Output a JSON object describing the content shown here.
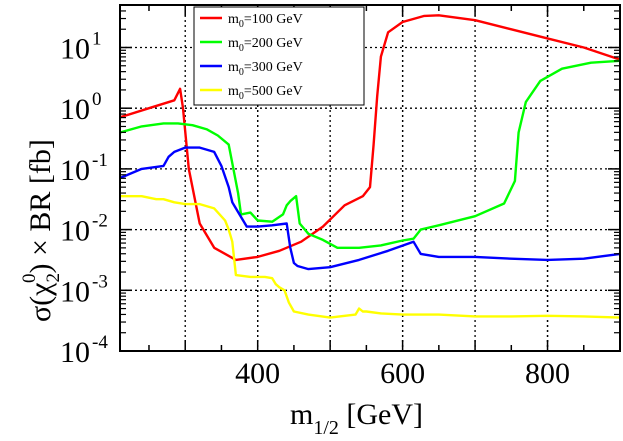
{
  "chart_data": {
    "type": "line",
    "xlabel": {
      "main": "m",
      "sub": "1/2",
      "unit": " [GeV]"
    },
    "ylabel": {
      "pre": "σ(χ",
      "sub": "2",
      "sup": "0",
      "post": ") × BR [fb]"
    },
    "xlim": [
      210,
      900
    ],
    "ylim_log10": [
      -4,
      1.7
    ],
    "y_scale": "log",
    "grid": true,
    "legend_placement": "top-center",
    "x_ticks": [
      "400",
      "600",
      "800"
    ],
    "x_tick_values": [
      400,
      600,
      800
    ],
    "y_ticks": [
      {
        "base": "10",
        "exp": "-4",
        "value": -4
      },
      {
        "base": "10",
        "exp": "-3",
        "value": -3
      },
      {
        "base": "10",
        "exp": "-2",
        "value": -2
      },
      {
        "base": "10",
        "exp": "-1",
        "value": -1
      },
      {
        "base": "10",
        "exp": "0",
        "value": 0
      },
      {
        "base": "10",
        "exp": "1",
        "value": 1
      }
    ],
    "series": [
      {
        "name": {
          "m": "m",
          "sub": "0",
          "rest": "=100 GeV"
        },
        "color": "#ff0000",
        "x": [
          210,
          250,
          285,
          293,
          297,
          305,
          320,
          340,
          370,
          400,
          430,
          460,
          490,
          520,
          545,
          555,
          560,
          565,
          570,
          580,
          600,
          630,
          650,
          700,
          750,
          800,
          850,
          900
        ],
        "y": [
          -0.15,
          0.0,
          0.13,
          0.32,
          0.0,
          -1.0,
          -1.9,
          -2.3,
          -2.5,
          -2.45,
          -2.35,
          -2.2,
          -1.95,
          -1.6,
          -1.45,
          -1.3,
          -0.6,
          0.2,
          0.85,
          1.25,
          1.42,
          1.52,
          1.53,
          1.45,
          1.3,
          1.15,
          1.0,
          0.8
        ]
      },
      {
        "name": {
          "m": "m",
          "sub": "0",
          "rest": "=200 GeV"
        },
        "color": "#00ff00",
        "x": [
          210,
          240,
          270,
          290,
          310,
          330,
          345,
          360,
          373,
          377,
          390,
          400,
          420,
          435,
          440,
          445,
          453,
          458,
          470,
          490,
          510,
          540,
          570,
          600,
          615,
          625,
          650,
          700,
          740,
          755,
          760,
          770,
          790,
          820,
          860,
          900
        ],
        "y": [
          -0.4,
          -0.3,
          -0.25,
          -0.25,
          -0.28,
          -0.35,
          -0.45,
          -0.6,
          -1.4,
          -1.75,
          -1.72,
          -1.85,
          -1.87,
          -1.75,
          -1.6,
          -1.53,
          -1.45,
          -1.9,
          -2.07,
          -2.17,
          -2.3,
          -2.3,
          -2.26,
          -2.18,
          -2.15,
          -2.0,
          -1.93,
          -1.78,
          -1.57,
          -1.2,
          -0.4,
          0.1,
          0.45,
          0.65,
          0.75,
          0.78
        ]
      },
      {
        "name": {
          "m": "m",
          "sub": "0",
          "rest": "=300 GeV"
        },
        "color": "#0000ff",
        "x": [
          210,
          240,
          270,
          277,
          285,
          300,
          320,
          340,
          350,
          360,
          365,
          370,
          385,
          400,
          420,
          440,
          445,
          450,
          455,
          470,
          500,
          540,
          580,
          615,
          620,
          625,
          650,
          700,
          750,
          800,
          850,
          900
        ],
        "y": [
          -1.15,
          -1.0,
          -0.95,
          -0.8,
          -0.72,
          -0.65,
          -0.65,
          -0.72,
          -0.95,
          -1.3,
          -1.55,
          -1.65,
          -1.95,
          -1.95,
          -1.93,
          -1.9,
          -2.3,
          -2.55,
          -2.6,
          -2.65,
          -2.62,
          -2.5,
          -2.35,
          -2.2,
          -2.3,
          -2.4,
          -2.45,
          -2.45,
          -2.48,
          -2.5,
          -2.48,
          -2.4
        ]
      },
      {
        "name": {
          "m": "m",
          "sub": "0",
          "rest": "=500 GeV"
        },
        "color": "#ffff00",
        "x": [
          210,
          240,
          260,
          270,
          285,
          300,
          320,
          340,
          355,
          360,
          365,
          370,
          390,
          410,
          420,
          425,
          430,
          437,
          443,
          450,
          470,
          500,
          535,
          540,
          545,
          550,
          570,
          600,
          650,
          700,
          750,
          800,
          850,
          900
        ],
        "y": [
          -1.45,
          -1.45,
          -1.5,
          -1.5,
          -1.55,
          -1.58,
          -1.58,
          -1.65,
          -1.85,
          -2.0,
          -2.2,
          -2.75,
          -2.78,
          -2.78,
          -2.8,
          -2.9,
          -2.95,
          -3.0,
          -3.2,
          -3.35,
          -3.4,
          -3.45,
          -3.4,
          -3.3,
          -3.35,
          -3.35,
          -3.38,
          -3.4,
          -3.4,
          -3.43,
          -3.43,
          -3.42,
          -3.43,
          -3.45
        ]
      }
    ]
  }
}
